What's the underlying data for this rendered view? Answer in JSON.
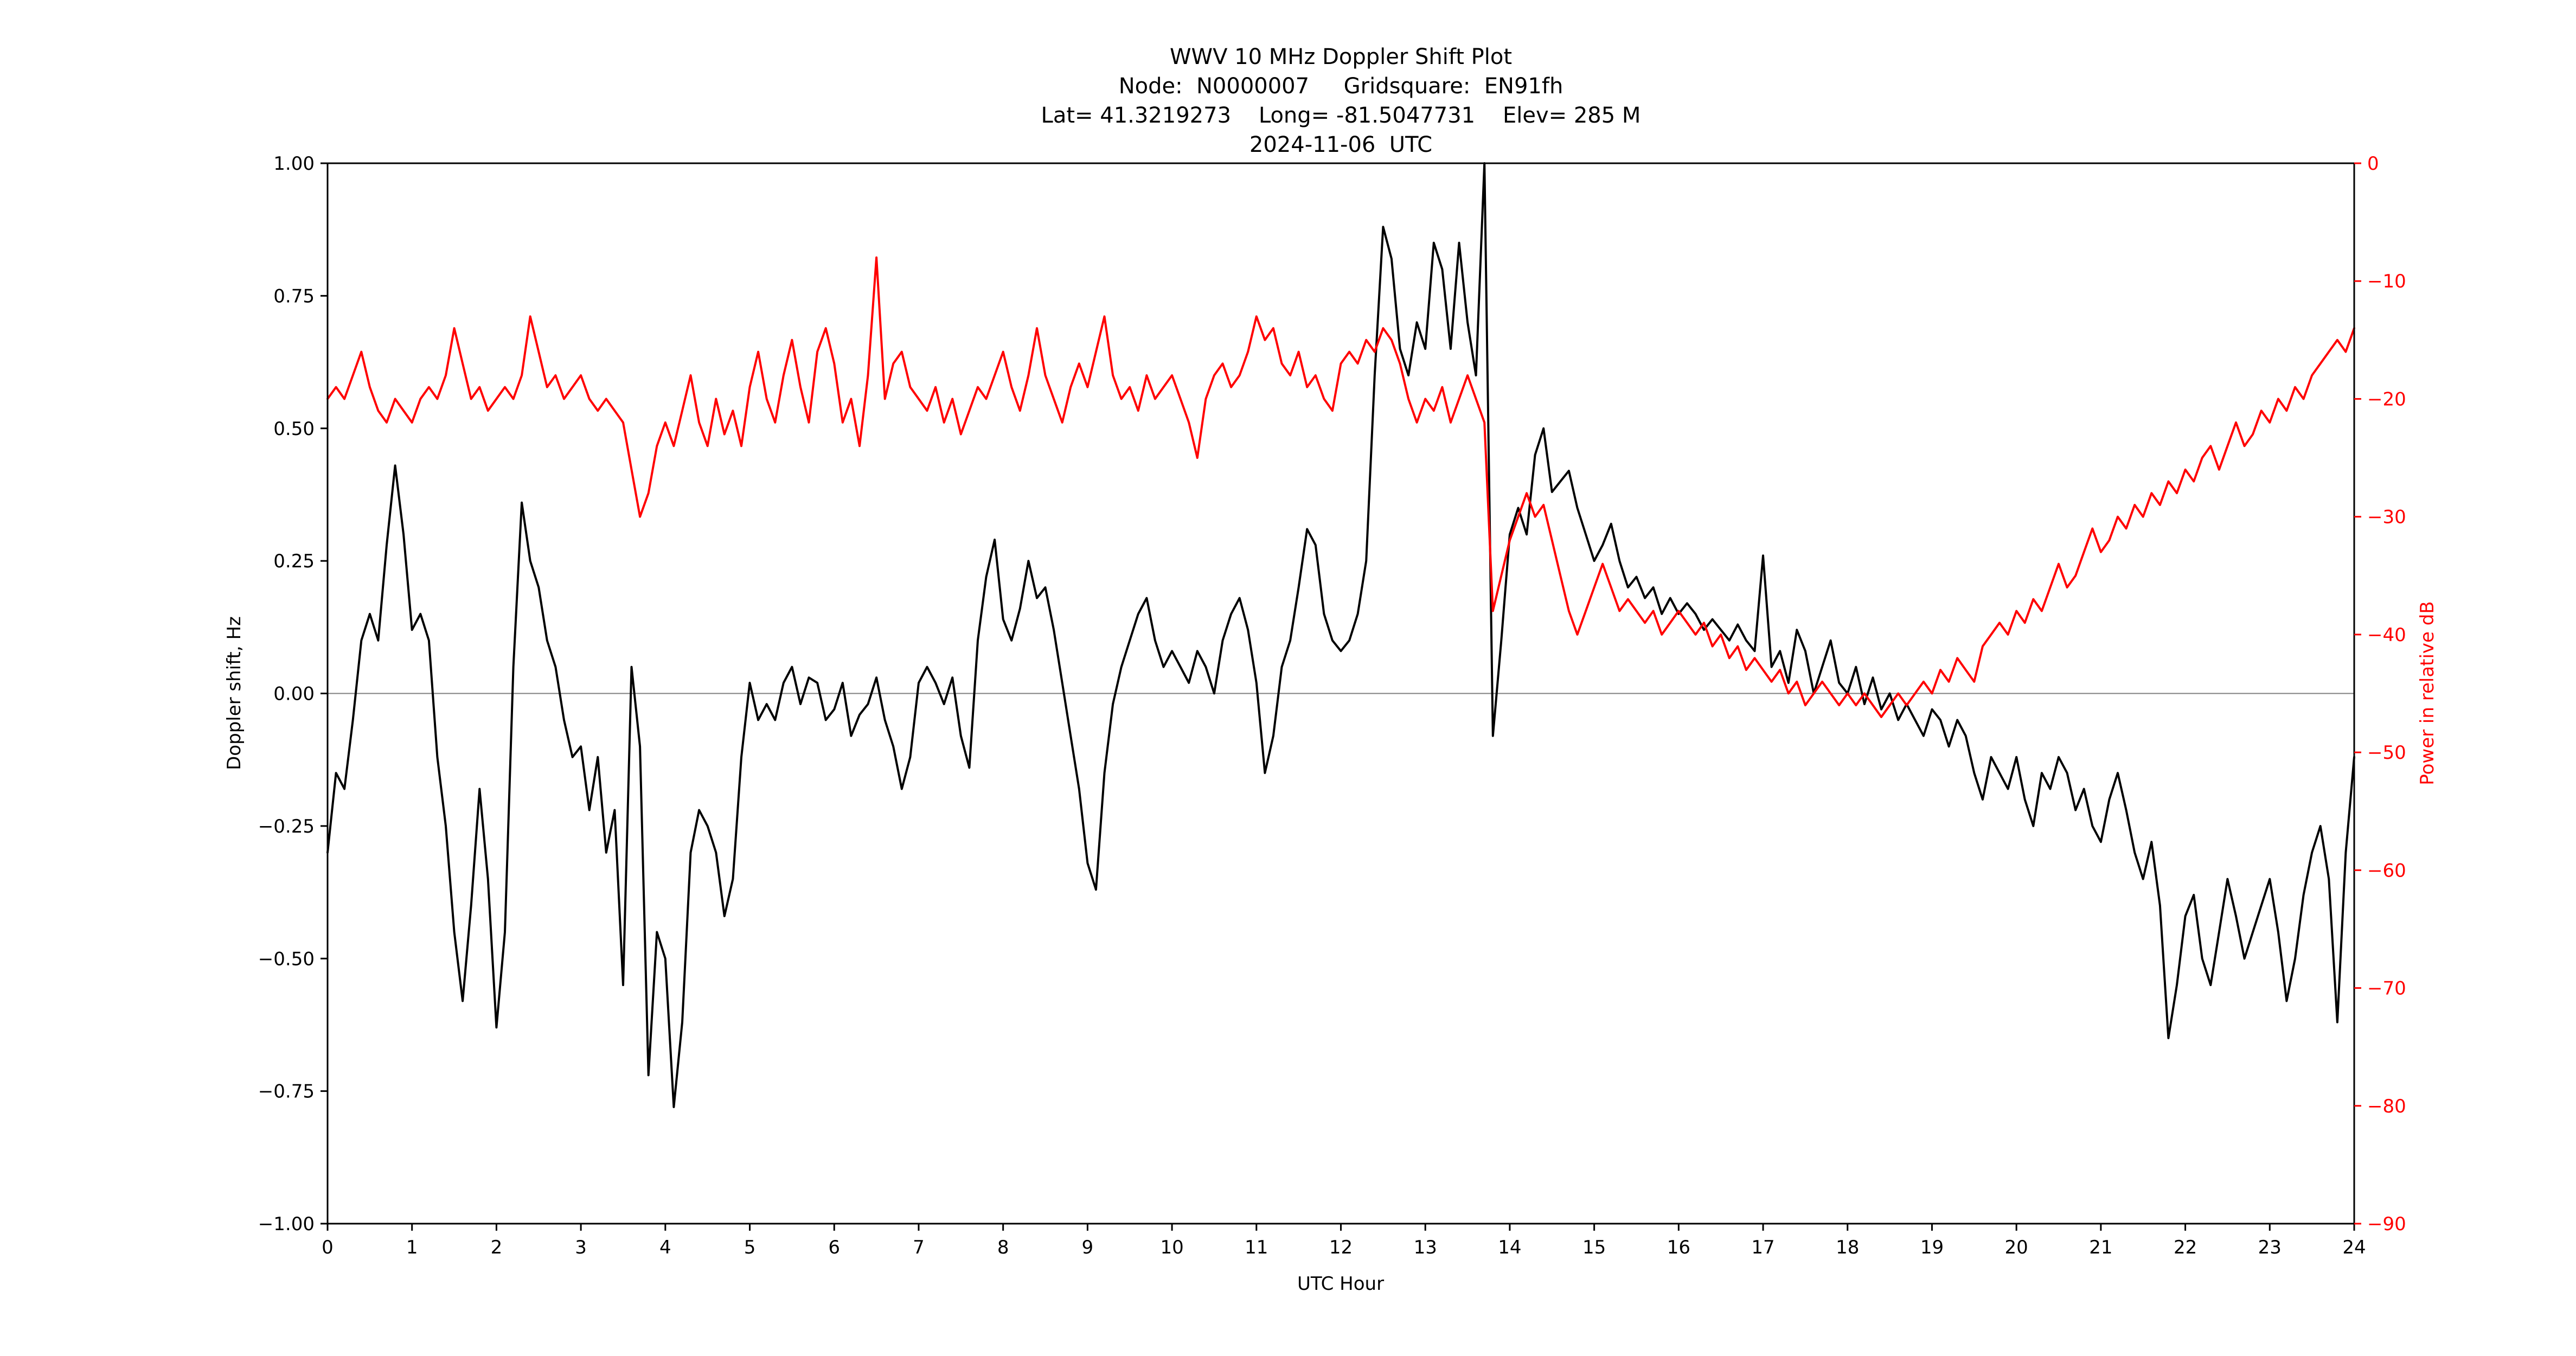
{
  "figure": {
    "background": "#ffffff"
  },
  "chart_data": {
    "type": "line",
    "title": "WWV 10 MHz Doppler Shift Plot",
    "title_lines": [
      "WWV 10 MHz Doppler Shift Plot",
      "Node:  N0000007     Gridsquare:  EN91fh",
      "Lat= 41.3219273    Long= -81.5047731    Elev= 285 M",
      "2024-11-06  UTC"
    ],
    "xlabel": "UTC Hour",
    "ylabel_left": "Doppler shift, Hz",
    "ylabel_right": "Power in relative dB",
    "x_range": [
      0,
      24
    ],
    "y_left_range": [
      -1.0,
      1.0
    ],
    "y_right_range": [
      -90,
      0
    ],
    "grid": false,
    "zero_line": true,
    "legend": "none",
    "x_ticks": [
      "0",
      "1",
      "2",
      "3",
      "4",
      "5",
      "6",
      "7",
      "8",
      "9",
      "10",
      "11",
      "12",
      "13",
      "14",
      "15",
      "16",
      "17",
      "18",
      "19",
      "20",
      "21",
      "22",
      "23",
      "24"
    ],
    "y_left_ticks": [
      "1.00",
      "0.75",
      "0.50",
      "0.25",
      "0.00",
      "−0.25",
      "−0.50",
      "−0.75",
      "−1.00"
    ],
    "y_right_ticks": [
      "0",
      "−10",
      "−20",
      "−30",
      "−40",
      "−50",
      "−60",
      "−70",
      "−80",
      "−90"
    ],
    "colors": {
      "doppler": "#000000",
      "power": "#ff0000",
      "zero_line": "#808080"
    },
    "series": [
      {
        "name": "doppler-shift-hz",
        "axis": "left",
        "color": "#000000",
        "x_start": 0,
        "x_step": 0.1,
        "values": [
          -0.3,
          -0.15,
          -0.18,
          -0.05,
          0.1,
          0.15,
          0.1,
          0.28,
          0.43,
          0.3,
          0.12,
          0.15,
          0.1,
          -0.12,
          -0.25,
          -0.45,
          -0.58,
          -0.4,
          -0.18,
          -0.35,
          -0.63,
          -0.45,
          0.05,
          0.36,
          0.25,
          0.2,
          0.1,
          0.05,
          -0.05,
          -0.12,
          -0.1,
          -0.22,
          -0.12,
          -0.3,
          -0.22,
          -0.55,
          0.05,
          -0.1,
          -0.72,
          -0.45,
          -0.5,
          -0.78,
          -0.62,
          -0.3,
          -0.22,
          -0.25,
          -0.3,
          -0.42,
          -0.35,
          -0.12,
          0.02,
          -0.05,
          -0.02,
          -0.05,
          0.02,
          0.05,
          -0.02,
          0.03,
          0.02,
          -0.05,
          -0.03,
          0.02,
          -0.08,
          -0.04,
          -0.02,
          0.03,
          -0.05,
          -0.1,
          -0.18,
          -0.12,
          0.02,
          0.05,
          0.02,
          -0.02,
          0.03,
          -0.08,
          -0.14,
          0.1,
          0.22,
          0.29,
          0.14,
          0.1,
          0.16,
          0.25,
          0.18,
          0.2,
          0.12,
          0.02,
          -0.08,
          -0.18,
          -0.32,
          -0.37,
          -0.15,
          -0.02,
          0.05,
          0.1,
          0.15,
          0.18,
          0.1,
          0.05,
          0.08,
          0.05,
          0.02,
          0.08,
          0.05,
          0.0,
          0.1,
          0.15,
          0.18,
          0.12,
          0.02,
          -0.15,
          -0.08,
          0.05,
          0.1,
          0.2,
          0.31,
          0.28,
          0.15,
          0.1,
          0.08,
          0.1,
          0.15,
          0.25,
          0.6,
          0.88,
          0.82,
          0.65,
          0.6,
          0.7,
          0.65,
          0.85,
          0.8,
          0.65,
          0.85,
          0.7,
          0.6,
          1.0,
          -0.08,
          0.1,
          0.3,
          0.35,
          0.3,
          0.45,
          0.5,
          0.38,
          0.4,
          0.42,
          0.35,
          0.3,
          0.25,
          0.28,
          0.32,
          0.25,
          0.2,
          0.22,
          0.18,
          0.2,
          0.15,
          0.18,
          0.15,
          0.17,
          0.15,
          0.12,
          0.14,
          0.12,
          0.1,
          0.13,
          0.1,
          0.08,
          0.26,
          0.05,
          0.08,
          0.02,
          0.12,
          0.08,
          0.0,
          0.05,
          0.1,
          0.02,
          0.0,
          0.05,
          -0.02,
          0.03,
          -0.03,
          0.0,
          -0.05,
          -0.02,
          -0.05,
          -0.08,
          -0.03,
          -0.05,
          -0.1,
          -0.05,
          -0.08,
          -0.15,
          -0.2,
          -0.12,
          -0.15,
          -0.18,
          -0.12,
          -0.2,
          -0.25,
          -0.15,
          -0.18,
          -0.12,
          -0.15,
          -0.22,
          -0.18,
          -0.25,
          -0.28,
          -0.2,
          -0.15,
          -0.22,
          -0.3,
          -0.35,
          -0.28,
          -0.4,
          -0.65,
          -0.55,
          -0.42,
          -0.38,
          -0.5,
          -0.55,
          -0.45,
          -0.35,
          -0.42,
          -0.5,
          -0.45,
          -0.4,
          -0.35,
          -0.45,
          -0.58,
          -0.5,
          -0.38,
          -0.3,
          -0.25,
          -0.35,
          -0.62,
          -0.3,
          -0.12
        ]
      },
      {
        "name": "power-relative-db",
        "axis": "right",
        "color": "#ff0000",
        "x_start": 0,
        "x_step": 0.1,
        "values": [
          -20,
          -19,
          -20,
          -18,
          -16,
          -19,
          -21,
          -22,
          -20,
          -21,
          -22,
          -20,
          -19,
          -20,
          -18,
          -14,
          -17,
          -20,
          -19,
          -21,
          -20,
          -19,
          -20,
          -18,
          -13,
          -16,
          -19,
          -18,
          -20,
          -19,
          -18,
          -20,
          -21,
          -20,
          -21,
          -22,
          -26,
          -30,
          -28,
          -24,
          -22,
          -24,
          -21,
          -18,
          -22,
          -24,
          -20,
          -23,
          -21,
          -24,
          -19,
          -16,
          -20,
          -22,
          -18,
          -15,
          -19,
          -22,
          -16,
          -14,
          -17,
          -22,
          -20,
          -24,
          -18,
          -8,
          -20,
          -17,
          -16,
          -19,
          -20,
          -21,
          -19,
          -22,
          -20,
          -23,
          -21,
          -19,
          -20,
          -18,
          -16,
          -19,
          -21,
          -18,
          -14,
          -18,
          -20,
          -22,
          -19,
          -17,
          -19,
          -16,
          -13,
          -18,
          -20,
          -19,
          -21,
          -18,
          -20,
          -19,
          -18,
          -20,
          -22,
          -25,
          -20,
          -18,
          -17,
          -19,
          -18,
          -16,
          -13,
          -15,
          -14,
          -17,
          -18,
          -16,
          -19,
          -18,
          -20,
          -21,
          -17,
          -16,
          -17,
          -15,
          -16,
          -14,
          -15,
          -17,
          -20,
          -22,
          -20,
          -21,
          -19,
          -22,
          -20,
          -18,
          -20,
          -22,
          -38,
          -35,
          -32,
          -30,
          -28,
          -30,
          -29,
          -32,
          -35,
          -38,
          -40,
          -38,
          -36,
          -34,
          -36,
          -38,
          -37,
          -38,
          -39,
          -38,
          -40,
          -39,
          -38,
          -39,
          -40,
          -39,
          -41,
          -40,
          -42,
          -41,
          -43,
          -42,
          -43,
          -44,
          -43,
          -45,
          -44,
          -46,
          -45,
          -44,
          -45,
          -46,
          -45,
          -46,
          -45,
          -46,
          -47,
          -46,
          -45,
          -46,
          -45,
          -44,
          -45,
          -43,
          -44,
          -42,
          -43,
          -44,
          -41,
          -40,
          -39,
          -40,
          -38,
          -39,
          -37,
          -38,
          -36,
          -34,
          -36,
          -35,
          -33,
          -31,
          -33,
          -32,
          -30,
          -31,
          -29,
          -30,
          -28,
          -29,
          -27,
          -28,
          -26,
          -27,
          -25,
          -24,
          -26,
          -24,
          -22,
          -24,
          -23,
          -21,
          -22,
          -20,
          -21,
          -19,
          -20,
          -18,
          -17,
          -16,
          -15,
          -16,
          -14
        ]
      }
    ]
  }
}
